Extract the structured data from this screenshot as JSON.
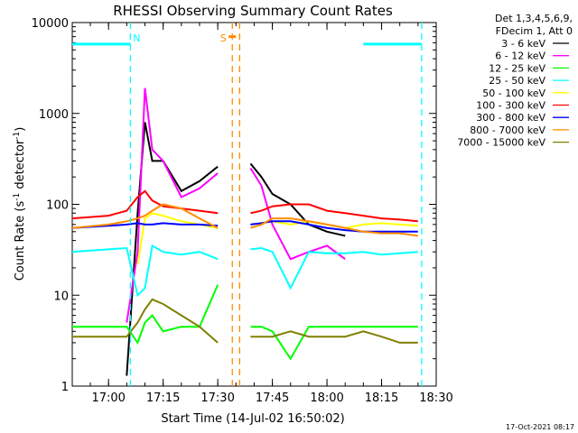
{
  "chart_data": {
    "type": "line",
    "title": "RHESSI Observing Summary Count Rates",
    "xlabel": "Start Time (14-Jul-02 16:50:02)",
    "ylabel": "Count Rate (s⁻¹ detector⁻¹)",
    "ylabel_parts": {
      "main": "Count Rate (s",
      "sup1": "-1",
      "mid": " detector",
      "sup2": "-1",
      "end": ")"
    },
    "yscale": "log",
    "xlim": [
      "16:50:02",
      "18:30"
    ],
    "ylim": [
      1,
      10000
    ],
    "x_ticks": [
      "17:00",
      "17:15",
      "17:30",
      "17:45",
      "18:00",
      "18:15",
      "18:30"
    ],
    "y_ticks": [
      "1",
      "10",
      "100",
      "1000",
      "10000"
    ],
    "legend_header": [
      "Det 1,3,4,5,6,9,",
      "FDecim 1, Att 0"
    ],
    "legend_position": "outside-right",
    "markers": [
      {
        "label": "N",
        "color": "#00ffff",
        "times": [
          "17:06",
          "18:26"
        ]
      },
      {
        "label": "S",
        "color": "#ff8c00",
        "times": [
          "17:34",
          "17:36"
        ]
      }
    ],
    "flags": [
      {
        "label": "N",
        "color": "#00ffff",
        "value": 5800,
        "segments": [
          [
            "16:50:02",
            "17:06"
          ],
          [
            "18:10",
            "18:26"
          ]
        ]
      },
      {
        "label": "S",
        "color": "#ff8c00",
        "value": 7000,
        "segments": [
          [
            "17:33",
            "17:35"
          ]
        ]
      }
    ],
    "data_gaps": [
      [
        "17:35",
        "17:39"
      ]
    ],
    "x": [
      "16:50",
      "17:00",
      "17:05",
      "17:08",
      "17:10",
      "17:12",
      "17:15",
      "17:20",
      "17:25",
      "17:30",
      "17:33",
      "17:39",
      "17:42",
      "17:45",
      "17:50",
      "17:55",
      "18:00",
      "18:05",
      "18:10",
      "18:15",
      "18:20",
      "18:25"
    ],
    "series": [
      {
        "name": "3 - 6 keV",
        "color": "#000000",
        "values": [
          null,
          null,
          1.3,
          80,
          800,
          300,
          300,
          140,
          180,
          260,
          null,
          280,
          200,
          130,
          100,
          60,
          50,
          45,
          null,
          null,
          null,
          null
        ]
      },
      {
        "name": "6 - 12 keV",
        "color": "#ff00ff",
        "values": [
          null,
          null,
          5,
          30,
          1900,
          400,
          300,
          120,
          150,
          220,
          null,
          250,
          160,
          60,
          25,
          30,
          35,
          25,
          null,
          null,
          null,
          null
        ]
      },
      {
        "name": "12 - 25 keV",
        "color": "#00ff00",
        "values": [
          4.5,
          4.5,
          4.5,
          3,
          5,
          6,
          4,
          4.5,
          4.5,
          13,
          null,
          4.5,
          4.5,
          4,
          2,
          4.5,
          4.5,
          4.5,
          4.5,
          4.5,
          4.5,
          4.5
        ]
      },
      {
        "name": "25 - 50 keV",
        "color": "#00ffff",
        "values": [
          30,
          32,
          33,
          10,
          12,
          35,
          30,
          28,
          30,
          25,
          null,
          32,
          33,
          30,
          12,
          30,
          29,
          29,
          30,
          28,
          29,
          30
        ]
      },
      {
        "name": "50 - 100 keV",
        "color": "#ffff00",
        "values": [
          null,
          null,
          null,
          22,
          70,
          80,
          75,
          65,
          60,
          55,
          null,
          60,
          62,
          65,
          60,
          65,
          60,
          55,
          60,
          62,
          60,
          58
        ]
      },
      {
        "name": "100 - 300 keV",
        "color": "#ff0000",
        "values": [
          70,
          75,
          85,
          120,
          140,
          110,
          95,
          90,
          85,
          80,
          null,
          80,
          85,
          95,
          100,
          100,
          85,
          80,
          75,
          70,
          68,
          65
        ]
      },
      {
        "name": "300 - 800 keV",
        "color": "#0000ff",
        "values": [
          55,
          58,
          60,
          62,
          60,
          60,
          62,
          60,
          60,
          58,
          null,
          60,
          62,
          65,
          65,
          60,
          55,
          52,
          50,
          50,
          50,
          50
        ]
      },
      {
        "name": "800 - 7000 keV",
        "color": "#ff8c00",
        "values": [
          55,
          60,
          65,
          70,
          75,
          85,
          100,
          90,
          70,
          55,
          null,
          55,
          60,
          70,
          70,
          65,
          60,
          55,
          50,
          48,
          48,
          45
        ]
      },
      {
        "name": "7000 - 15000 keV",
        "color": "#808000",
        "values": [
          3.5,
          3.5,
          3.5,
          5,
          7,
          9,
          8,
          6,
          4.5,
          3,
          null,
          3.5,
          3.5,
          3.5,
          4,
          3.5,
          3.5,
          3.5,
          4,
          3.5,
          3,
          3
        ]
      }
    ]
  },
  "footer_date": "17-Oct-2021 08:17"
}
